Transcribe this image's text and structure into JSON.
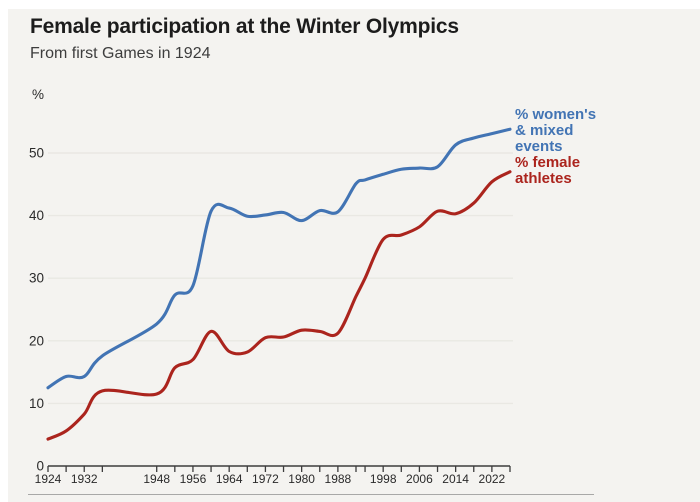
{
  "header": {
    "title": "Female participation at the Winter Olympics",
    "subtitle": "From first Games in 1924"
  },
  "chart_data": {
    "type": "line",
    "title": "Female participation at the Winter Olympics",
    "subtitle": "From first Games in 1924",
    "xlabel": "",
    "ylabel": "%",
    "xlim": [
      1924,
      2026
    ],
    "ylim": [
      0,
      55
    ],
    "yticks": [
      0,
      10,
      20,
      30,
      40,
      50
    ],
    "grid": "horizontal-faint",
    "legend_position": "right-of-line-ends",
    "x": [
      1924,
      1928,
      1932,
      1936,
      1948,
      1952,
      1956,
      1960,
      1964,
      1968,
      1972,
      1976,
      1980,
      1984,
      1988,
      1992,
      1994,
      1998,
      2002,
      2006,
      2010,
      2014,
      2018,
      2022,
      2026
    ],
    "xtick_labels": [
      "1924",
      "1932",
      "1948",
      "1956",
      "1964",
      "1972",
      "1980",
      "1988",
      "1998",
      "2006",
      "2014",
      "2022"
    ],
    "series": [
      {
        "name": "% women's & mixed events",
        "label_lines": [
          "% women's",
          "& mixed",
          "events"
        ],
        "color": "#4274b4",
        "values": [
          12.5,
          14.3,
          14.3,
          17.6,
          22.7,
          27.3,
          28.8,
          40.7,
          41.2,
          39.9,
          40.1,
          40.5,
          39.2,
          40.8,
          40.6,
          45.1,
          45.7,
          46.6,
          47.4,
          47.6,
          47.8,
          51.3,
          52.4,
          53.1,
          53.8
        ]
      },
      {
        "name": "% female athletes",
        "label_lines": [
          "% female",
          "athletes"
        ],
        "color": "#ab241d",
        "values": [
          4.3,
          5.6,
          8.3,
          12.0,
          11.5,
          15.7,
          17.0,
          21.5,
          18.3,
          18.2,
          20.5,
          20.6,
          21.7,
          21.5,
          21.2,
          27.1,
          30.0,
          36.2,
          36.9,
          38.2,
          40.7,
          40.3,
          42.0,
          45.4,
          47.0
        ]
      }
    ]
  },
  "colors": {
    "background": "#f4f3f0",
    "frame": "#ffffff",
    "title_text": "#1c1c1c",
    "subtitle_text": "#3d3d3d",
    "axis": "#3c3c3c",
    "tick_label": "#2a2a2a",
    "gridline": "#e9e8e3",
    "divider": "#9a9a9a",
    "series_blue": "#4274b4",
    "series_red": "#ab241d"
  }
}
